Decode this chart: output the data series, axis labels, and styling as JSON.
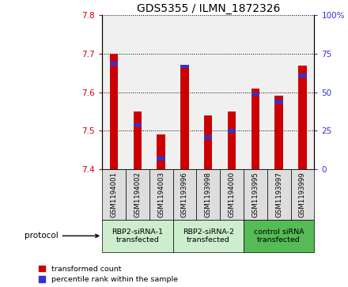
{
  "title": "GDS5355 / ILMN_1872326",
  "samples": [
    "GSM1194001",
    "GSM1194002",
    "GSM1194003",
    "GSM1193996",
    "GSM1193998",
    "GSM1194000",
    "GSM1193995",
    "GSM1193997",
    "GSM1193999"
  ],
  "red_values": [
    7.7,
    7.55,
    7.49,
    7.67,
    7.54,
    7.55,
    7.61,
    7.59,
    7.67
  ],
  "blue_values": [
    70,
    30,
    8,
    68,
    22,
    26,
    50,
    45,
    62
  ],
  "ylim_left": [
    7.4,
    7.8
  ],
  "ylim_right": [
    0,
    100
  ],
  "yticks_left": [
    7.4,
    7.5,
    7.6,
    7.7,
    7.8
  ],
  "yticks_right": [
    0,
    25,
    50,
    75,
    100
  ],
  "red_color": "#cc0000",
  "blue_color": "#3333cc",
  "bar_bottom": 7.4,
  "groups": [
    {
      "label": "RBP2-siRNA-1\ntransfected",
      "indices": [
        0,
        1,
        2
      ],
      "color": "#cceecc"
    },
    {
      "label": "RBP2-siRNA-2\ntransfected",
      "indices": [
        3,
        4,
        5
      ],
      "color": "#cceecc"
    },
    {
      "label": "control siRNA\ntransfected",
      "indices": [
        6,
        7,
        8
      ],
      "color": "#55bb55"
    }
  ],
  "legend_items": [
    {
      "label": "transformed count",
      "color": "#cc0000"
    },
    {
      "label": "percentile rank within the sample",
      "color": "#3333cc"
    }
  ],
  "bg_color": "#f0f0f0",
  "title_fontsize": 10,
  "tick_fontsize": 7.5,
  "bar_width": 0.35
}
